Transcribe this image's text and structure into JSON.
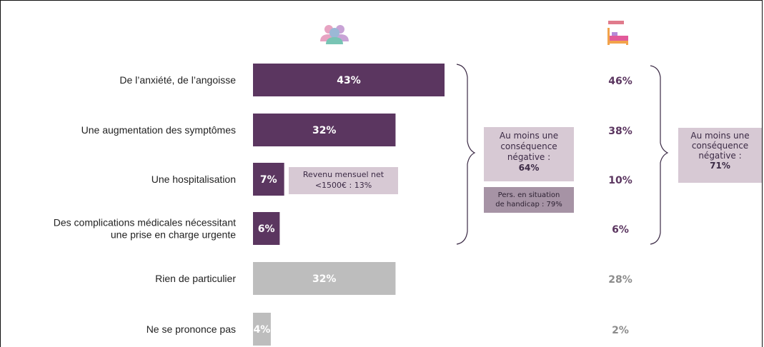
{
  "chart_data": {
    "type": "bar",
    "orientation": "horizontal",
    "categories": [
      "De l’anxiété, de l’angoisse",
      "Une augmentation des symptômes",
      "Une hospitalisation",
      "Des complications médicales nécessitant une prise en charge urgente",
      "Rien de particulier",
      "Ne se prononce pas"
    ],
    "category_lines": [
      [
        "De l’anxiété, de l’angoisse"
      ],
      [
        "Une augmentation des symptômes"
      ],
      [
        "Une hospitalisation"
      ],
      [
        "Des complications médicales nécessitant",
        "une prise en charge urgente"
      ],
      [
        "Rien de particulier"
      ],
      [
        "Ne se prononce pas"
      ]
    ],
    "series": [
      {
        "icon": "group-of-people-icon",
        "values": [
          43,
          32,
          7,
          6,
          32,
          4
        ],
        "labels": [
          "43%",
          "32%",
          "7%",
          "6%",
          "32%",
          "4%"
        ],
        "colors": [
          "#5b3660",
          "#5b3660",
          "#5b3660",
          "#5b3660",
          "#bdbdbd",
          "#bdbdbd"
        ]
      },
      {
        "icon": "hospital-bed-icon",
        "values": [
          46,
          38,
          10,
          6,
          28,
          2
        ],
        "labels": [
          "46%",
          "38%",
          "10%",
          "6%",
          "28%",
          "2%"
        ],
        "colors": [
          "#5b3660",
          "#5b3660",
          "#5b3660",
          "#5b3660",
          "#8c8c8c",
          "#8c8c8c"
        ]
      }
    ],
    "xlim": [
      0,
      100
    ],
    "annotations": {
      "revenue": {
        "line1": "Revenu mensuel net",
        "line2": "<1500€ : 13%"
      },
      "total1": {
        "line1": "Au moins une",
        "line2": "conséquence",
        "line3": "négative :",
        "value": "64%"
      },
      "handicap": {
        "line1": "Pers. en situation",
        "line2": "de handicap : 79%"
      },
      "total2": {
        "line1": "Au moins une",
        "line2": "conséquence",
        "line3": "négative :",
        "value": "71%"
      }
    },
    "grid": false,
    "legend": "none"
  }
}
